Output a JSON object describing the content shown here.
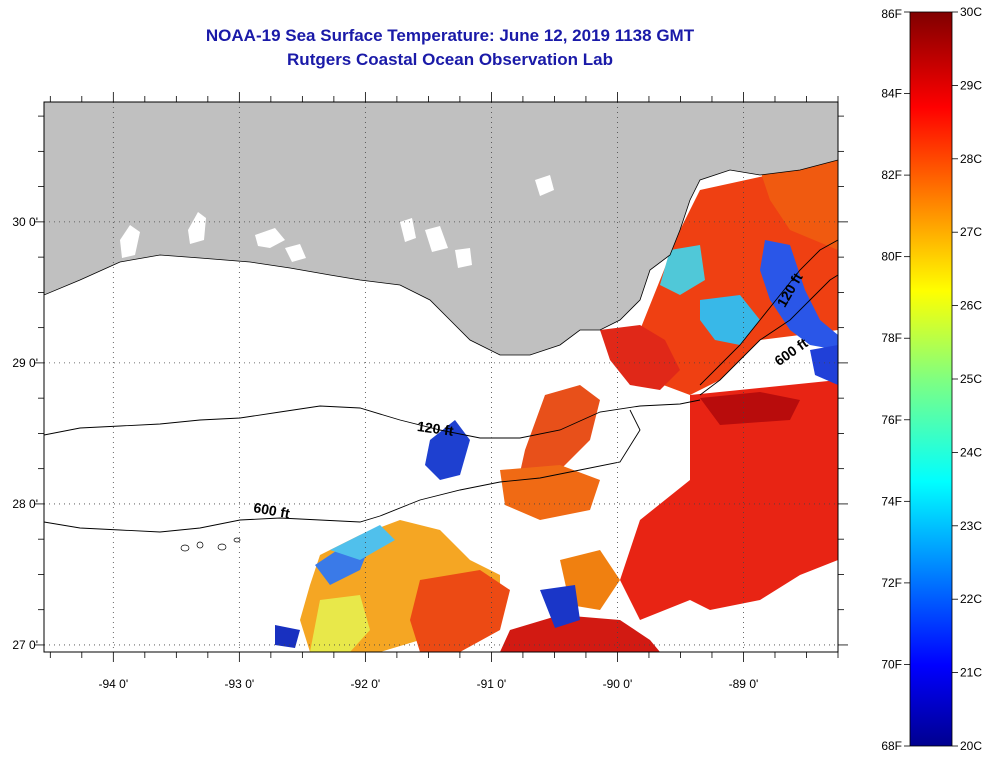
{
  "title": {
    "line1": "NOAA-19 Sea Surface Temperature:  June 12, 2019 1138 GMT",
    "line2": "Rutgers Coastal Ocean Observation Lab"
  },
  "map": {
    "lon_range": [
      -94.55,
      -88.25
    ],
    "lat_range": [
      26.95,
      30.85
    ],
    "lon_ticks": [
      {
        "value": -94,
        "label": "-94 0'"
      },
      {
        "value": -93,
        "label": "-93 0'"
      },
      {
        "value": -92,
        "label": "-92 0'"
      },
      {
        "value": -91,
        "label": "-91 0'"
      },
      {
        "value": -90,
        "label": "-90 0'"
      },
      {
        "value": -89,
        "label": "-89 0'"
      }
    ],
    "lat_ticks": [
      {
        "value": 27,
        "label": "27 0'"
      },
      {
        "value": 28,
        "label": "28 0'"
      },
      {
        "value": 29,
        "label": "29 0'"
      },
      {
        "value": 30,
        "label": "30 0'"
      }
    ],
    "contour_labels": [
      {
        "text": "120 ft",
        "lon": -91.45,
        "lat": 28.5,
        "rotate": 8
      },
      {
        "text": "600 ft",
        "lon": -92.75,
        "lat": 27.92,
        "rotate": 10
      },
      {
        "text": "600 ft",
        "lon": -88.6,
        "lat": 29.05,
        "rotate": -35
      },
      {
        "text": "120 ft",
        "lon": -88.6,
        "lat": 29.5,
        "rotate": -60
      }
    ],
    "land_color": "#c0c0c0",
    "cloud_color": "#ffffff"
  },
  "colorbar": {
    "min_c": 20,
    "max_c": 30,
    "f_labels": [
      "86F",
      "84F",
      "82F",
      "80F",
      "78F",
      "76F",
      "74F",
      "72F",
      "70F",
      "68F"
    ],
    "c_labels": [
      "30C",
      "29C",
      "28C",
      "27C",
      "26C",
      "25C",
      "24C",
      "23C",
      "22C",
      "21C",
      "20C"
    ]
  }
}
